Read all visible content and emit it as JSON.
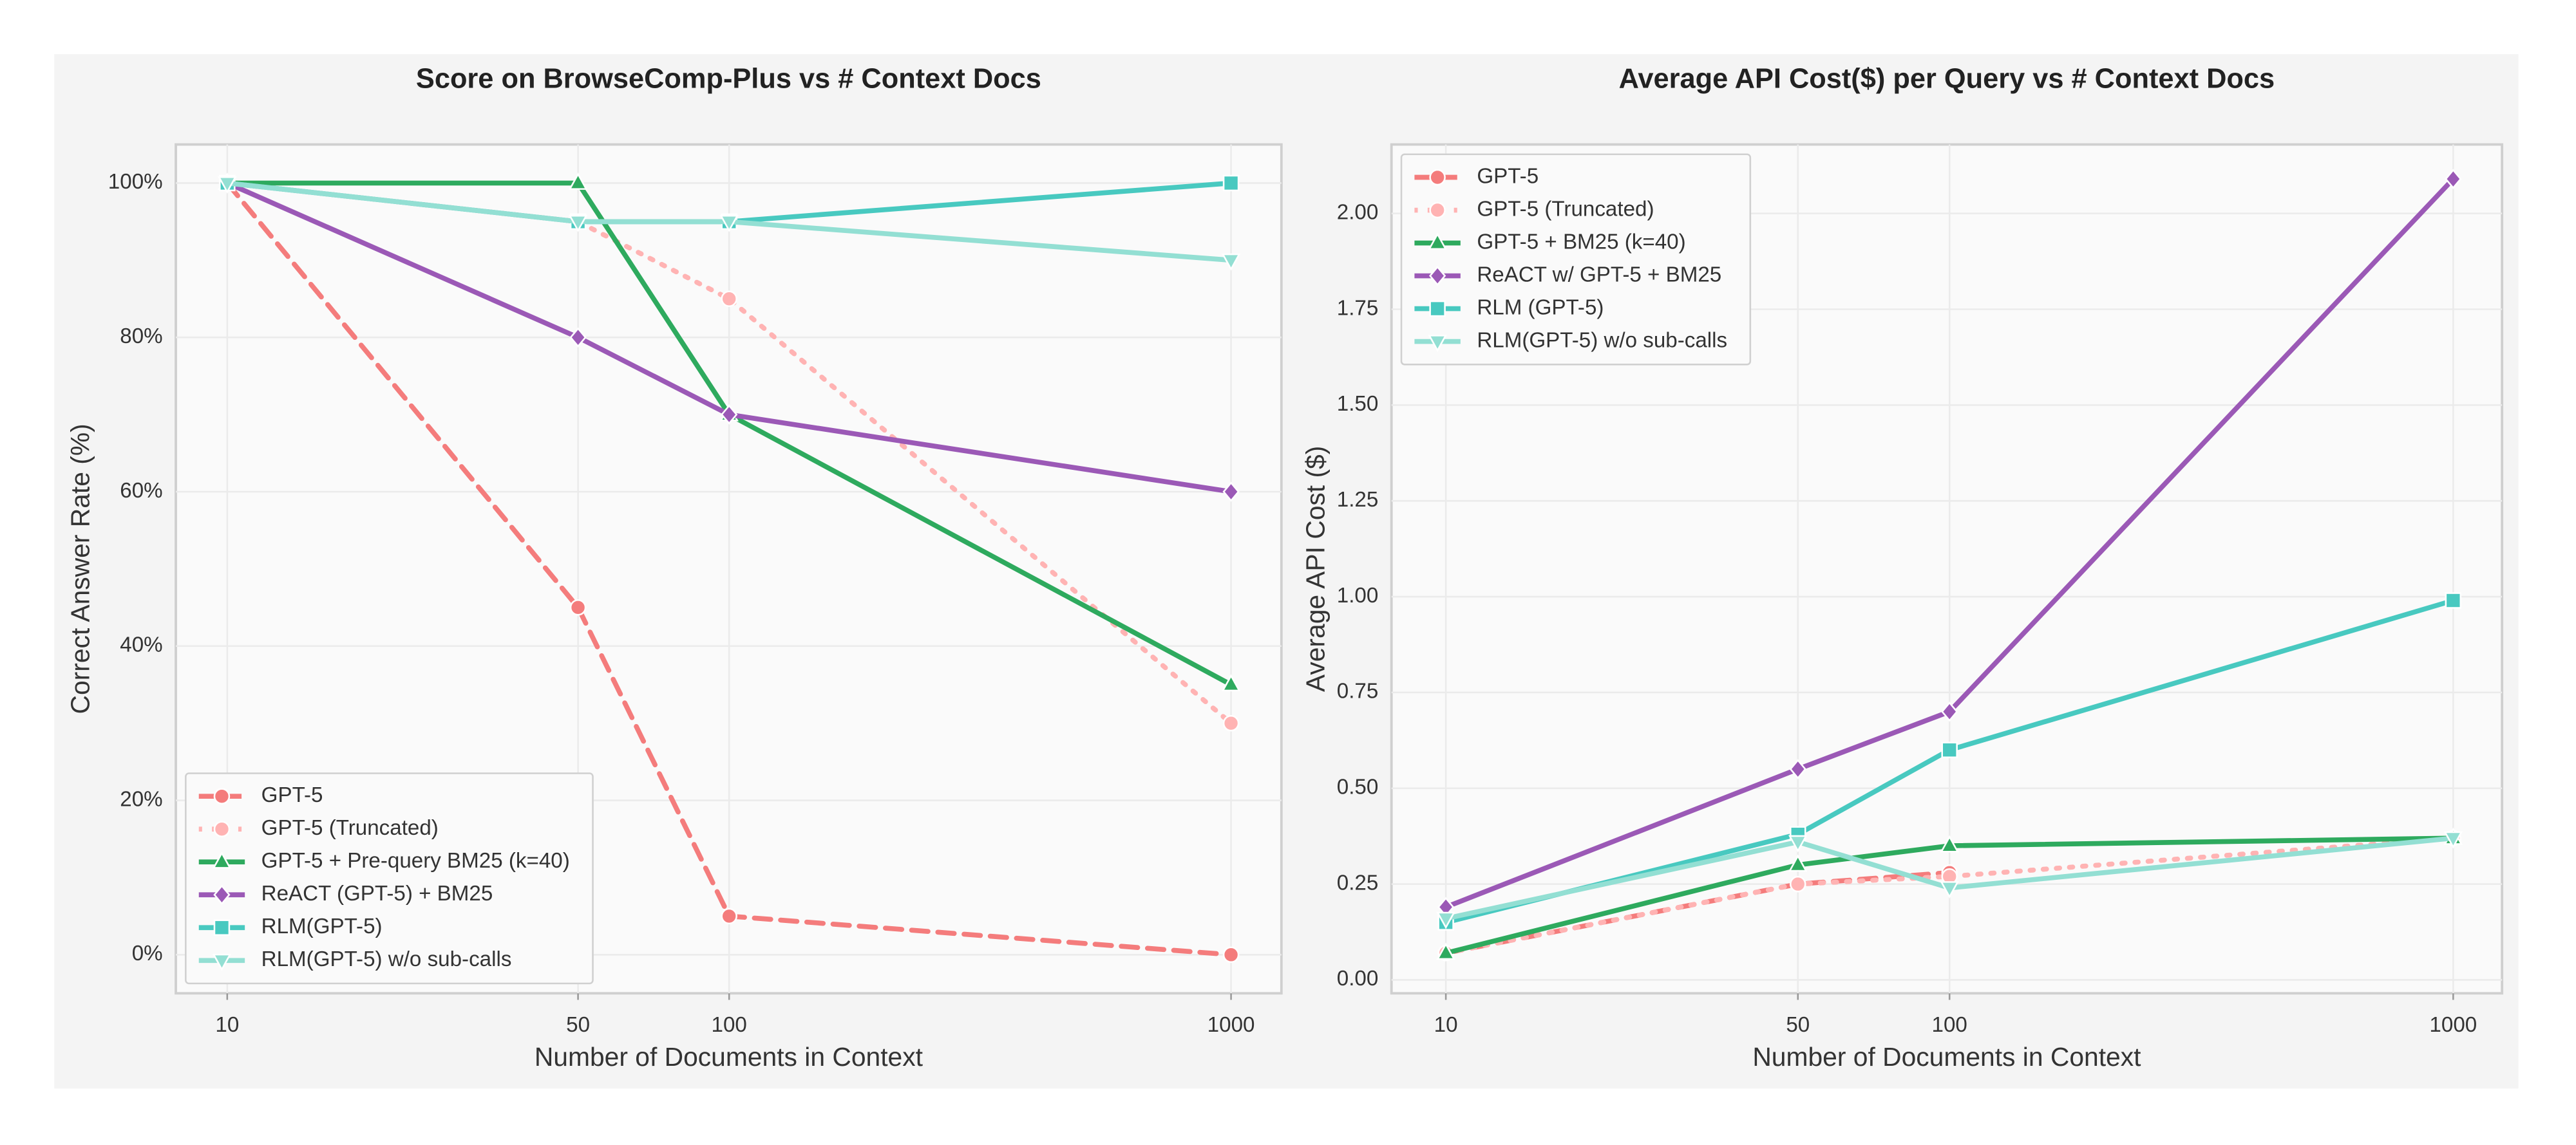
{
  "chart_data": [
    {
      "type": "line",
      "title": "Score on BrowseComp-Plus vs # Context Docs",
      "x_label": "Number of Documents in Context",
      "y_label": "Correct Answer Rate (%)",
      "x_log": true,
      "grid": true,
      "legend": "lower left",
      "x": [
        10,
        50,
        100,
        1000
      ],
      "xlim": [
        7.9,
        1260
      ],
      "xticks": [
        10,
        50,
        100,
        1000
      ],
      "ylim": [
        -5,
        105
      ],
      "yticks": [
        {
          "value": 0,
          "label": "0%"
        },
        {
          "value": 20,
          "label": "20%"
        },
        {
          "value": 40,
          "label": "40%"
        },
        {
          "value": 60,
          "label": "60%"
        },
        {
          "value": 80,
          "label": "80%"
        },
        {
          "value": 100,
          "label": "100%"
        }
      ],
      "series": [
        {
          "name": "GPT-5",
          "color": "#f47c7c",
          "linestyle": "dashed",
          "marker": "circle",
          "values": [
            100,
            45,
            5,
            0
          ]
        },
        {
          "name": "GPT-5 (Truncated)",
          "color": "#ffb3b3",
          "linestyle": "dotted",
          "marker": "circle",
          "values": [
            100,
            95,
            85,
            30
          ]
        },
        {
          "name": "GPT-5 + Pre-query BM25 (k=40)",
          "color": "#2eaa5e",
          "linestyle": "solid",
          "marker": "triangle-up",
          "values": [
            100,
            100,
            70,
            35
          ]
        },
        {
          "name": "ReACT (GPT-5) + BM25",
          "color": "#9b59b6",
          "linestyle": "solid",
          "marker": "diamond",
          "values": [
            100,
            80,
            70,
            60
          ]
        },
        {
          "name": "RLM(GPT-5)",
          "color": "#48c9c0",
          "linestyle": "solid",
          "marker": "square",
          "values": [
            100,
            95,
            95,
            100
          ]
        },
        {
          "name": "RLM(GPT-5) w/o sub-calls",
          "color": "#93dfd3",
          "linestyle": "solid",
          "marker": "triangle-down",
          "values": [
            100,
            95,
            95,
            90
          ]
        }
      ]
    },
    {
      "type": "line",
      "title": "Average API Cost($) per Query vs # Context Docs",
      "x_label": "Number of Documents in Context",
      "y_label": "Average API Cost ($)",
      "x_log": true,
      "grid": true,
      "legend": "upper left",
      "x": [
        10,
        50,
        100,
        1000
      ],
      "xlim": [
        7.8,
        1250
      ],
      "xticks": [
        10,
        50,
        100,
        1000
      ],
      "ylim": [
        -0.035,
        2.18
      ],
      "yticks": [
        {
          "value": 0,
          "label": "0.00"
        },
        {
          "value": 0.25,
          "label": "0.25"
        },
        {
          "value": 0.5,
          "label": "0.50"
        },
        {
          "value": 0.75,
          "label": "0.75"
        },
        {
          "value": 1,
          "label": "1.00"
        },
        {
          "value": 1.25,
          "label": "1.25"
        },
        {
          "value": 1.5,
          "label": "1.50"
        },
        {
          "value": 1.75,
          "label": "1.75"
        },
        {
          "value": 2,
          "label": "2.00"
        }
      ],
      "series": [
        {
          "name": "GPT-5",
          "color": "#f47c7c",
          "linestyle": "dashed",
          "marker": "circle",
          "values": [
            0.07,
            0.25,
            0.28,
            null
          ]
        },
        {
          "name": "GPT-5 (Truncated)",
          "color": "#ffb3b3",
          "linestyle": "dotted",
          "marker": "circle",
          "values": [
            0.07,
            0.25,
            0.27,
            0.37
          ]
        },
        {
          "name": "GPT-5 + BM25 (k=40)",
          "color": "#2eaa5e",
          "linestyle": "solid",
          "marker": "triangle-up",
          "values": [
            0.07,
            0.3,
            0.35,
            0.37
          ]
        },
        {
          "name": "ReACT w/ GPT-5 + BM25",
          "color": "#9b59b6",
          "linestyle": "solid",
          "marker": "diamond",
          "values": [
            0.19,
            0.55,
            0.7,
            2.09
          ]
        },
        {
          "name": "RLM (GPT-5)",
          "color": "#48c9c0",
          "linestyle": "solid",
          "marker": "square",
          "values": [
            0.15,
            0.38,
            0.6,
            0.99
          ]
        },
        {
          "name": "RLM(GPT-5) w/o sub-calls",
          "color": "#93dfd3",
          "linestyle": "solid",
          "marker": "triangle-down",
          "values": [
            0.16,
            0.36,
            0.24,
            0.37
          ]
        }
      ]
    }
  ]
}
